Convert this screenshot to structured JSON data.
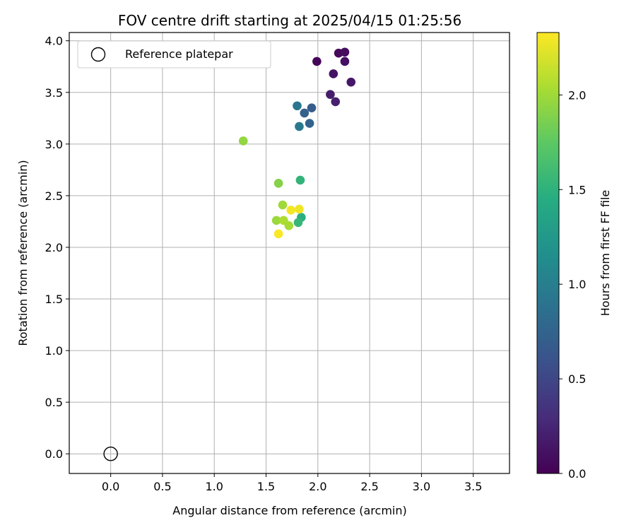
{
  "chart_data": {
    "type": "scatter",
    "title": "FOV centre drift starting at 2025/04/15 01:25:56",
    "xlabel": "Angular distance from reference (arcmin)",
    "ylabel": "Rotation from reference (arcmin)",
    "xlim": [
      -0.4,
      3.85
    ],
    "ylim": [
      -0.19,
      4.08
    ],
    "x_ticks": [
      "0.0",
      "0.5",
      "1.0",
      "1.5",
      "2.0",
      "2.5",
      "3.0",
      "3.5"
    ],
    "y_ticks": [
      "0.0",
      "0.5",
      "1.0",
      "1.5",
      "2.0",
      "2.5",
      "3.0",
      "3.5",
      "4.0"
    ],
    "grid": true,
    "legend": {
      "placement": "upper-left",
      "entries": [
        "Reference platepar"
      ]
    },
    "reference_point": {
      "x": 0.0,
      "y": 0.0,
      "marker": "hollow-circle",
      "color": "#000000"
    },
    "colorbar": {
      "label": "Hours from first FF file",
      "colormap": "viridis",
      "range": [
        0.0,
        2.33
      ],
      "ticks": [
        "0.0",
        "0.5",
        "1.0",
        "1.5",
        "2.0"
      ]
    },
    "points": [
      {
        "x": 1.99,
        "y": 3.8,
        "hours": 0.02
      },
      {
        "x": 2.2,
        "y": 3.88,
        "hours": 0.05
      },
      {
        "x": 2.26,
        "y": 3.89,
        "hours": 0.08
      },
      {
        "x": 2.26,
        "y": 3.8,
        "hours": 0.1
      },
      {
        "x": 2.15,
        "y": 3.68,
        "hours": 0.12
      },
      {
        "x": 2.32,
        "y": 3.6,
        "hours": 0.15
      },
      {
        "x": 2.12,
        "y": 3.48,
        "hours": 0.18
      },
      {
        "x": 2.17,
        "y": 3.41,
        "hours": 0.2
      },
      {
        "x": 1.87,
        "y": 3.3,
        "hours": 0.72
      },
      {
        "x": 1.94,
        "y": 3.35,
        "hours": 0.68
      },
      {
        "x": 1.92,
        "y": 3.2,
        "hours": 0.75
      },
      {
        "x": 1.8,
        "y": 3.37,
        "hours": 0.92
      },
      {
        "x": 1.82,
        "y": 3.17,
        "hours": 0.95
      },
      {
        "x": 1.83,
        "y": 2.65,
        "hours": 1.52
      },
      {
        "x": 1.84,
        "y": 2.29,
        "hours": 1.48
      },
      {
        "x": 1.81,
        "y": 2.24,
        "hours": 1.55
      },
      {
        "x": 1.28,
        "y": 3.03,
        "hours": 1.95
      },
      {
        "x": 1.62,
        "y": 2.62,
        "hours": 1.9
      },
      {
        "x": 1.66,
        "y": 2.41,
        "hours": 2.0
      },
      {
        "x": 1.6,
        "y": 2.26,
        "hours": 1.98
      },
      {
        "x": 1.67,
        "y": 2.26,
        "hours": 2.05
      },
      {
        "x": 1.72,
        "y": 2.21,
        "hours": 2.02
      },
      {
        "x": 1.74,
        "y": 2.36,
        "hours": 2.3
      },
      {
        "x": 1.82,
        "y": 2.37,
        "hours": 2.28
      },
      {
        "x": 1.62,
        "y": 2.13,
        "hours": 2.32
      }
    ]
  }
}
